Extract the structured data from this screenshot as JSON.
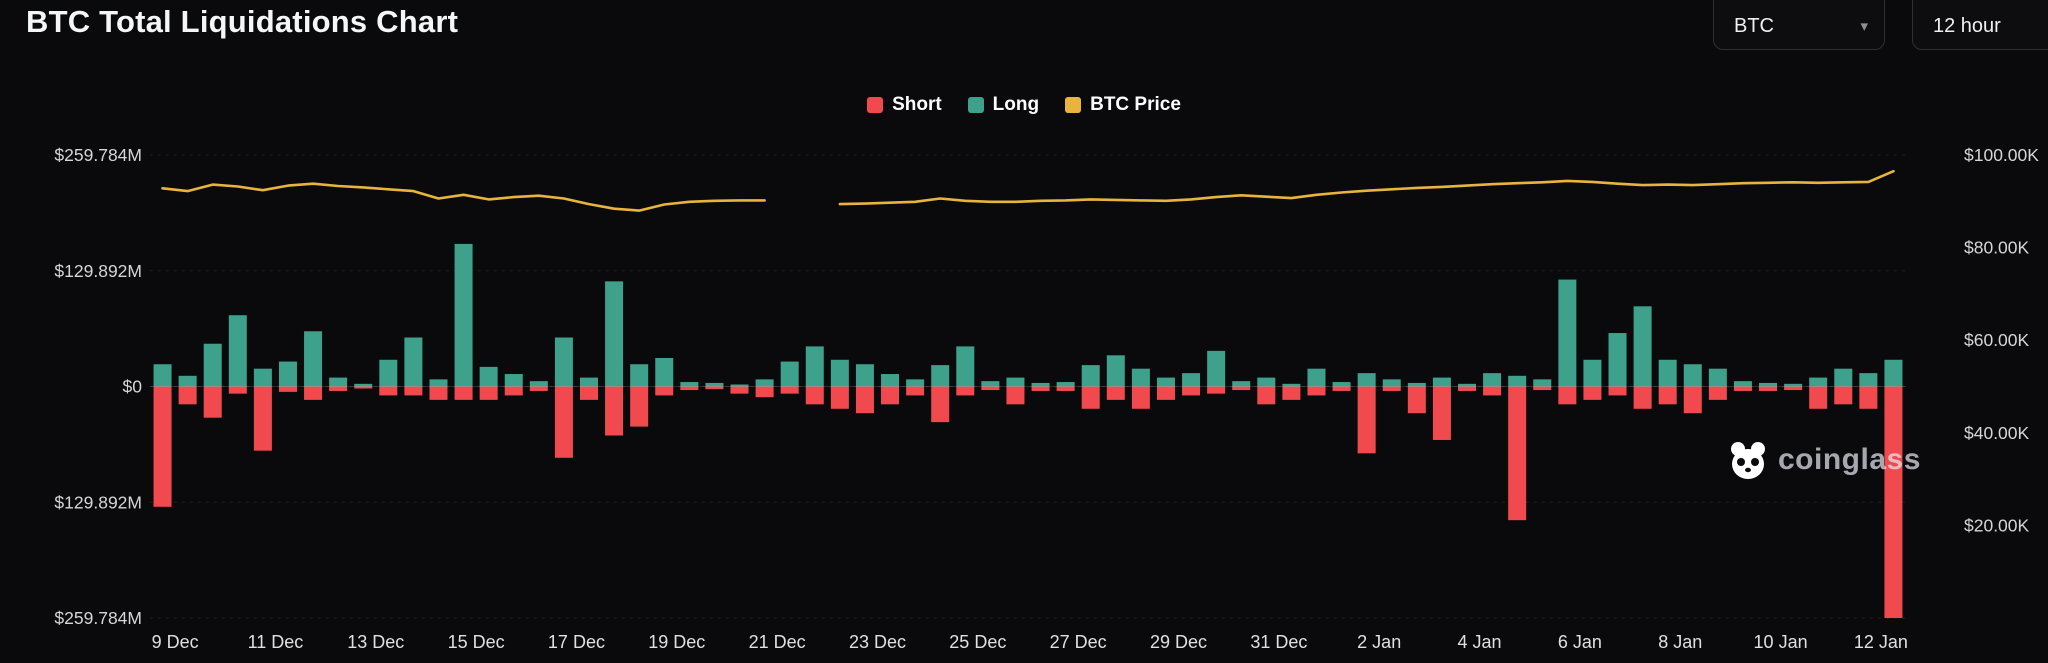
{
  "header": {
    "title": "BTC Total Liquidations Chart",
    "coin_select": "BTC",
    "interval_select": "12 hour"
  },
  "legend": [
    {
      "label": "Short",
      "color": "#f04a4f"
    },
    {
      "label": "Long",
      "color": "#3da18b"
    },
    {
      "label": "BTC Price",
      "color": "#e9b43e"
    }
  ],
  "watermark": "coinglass",
  "chart_data": {
    "type": "bar",
    "title": "BTC Total Liquidations Chart",
    "interval": "12 hour",
    "grid": true,
    "legend_position": "top-center",
    "left_axis": {
      "labels": [
        "$259.784M",
        "$129.892M",
        "$0",
        "$129.892M",
        "$259.784M"
      ],
      "values_M": [
        259.784,
        129.892,
        0,
        -129.892,
        -259.784
      ],
      "unit": "$M"
    },
    "right_axis": {
      "labels": [
        "$100.00K",
        "$80.00K",
        "$60.00K",
        "$40.00K",
        "$20.00K"
      ],
      "values_K": [
        100,
        80,
        60,
        40,
        20
      ],
      "range_K": [
        0,
        100
      ],
      "unit": "$K"
    },
    "x_tick_labels": [
      "9 Dec",
      "11 Dec",
      "13 Dec",
      "15 Dec",
      "17 Dec",
      "19 Dec",
      "21 Dec",
      "23 Dec",
      "25 Dec",
      "27 Dec",
      "29 Dec",
      "31 Dec",
      "2 Jan",
      "4 Jan",
      "6 Jan",
      "8 Jan",
      "10 Jan",
      "12 Jan"
    ],
    "categories": [
      "9 Dec",
      "9 Dec",
      "10 Dec",
      "10 Dec",
      "11 Dec",
      "11 Dec",
      "12 Dec",
      "12 Dec",
      "13 Dec",
      "13 Dec",
      "14 Dec",
      "14 Dec",
      "15 Dec",
      "15 Dec",
      "16 Dec",
      "16 Dec",
      "17 Dec",
      "17 Dec",
      "18 Dec",
      "18 Dec",
      "19 Dec",
      "19 Dec",
      "20 Dec",
      "20 Dec",
      "21 Dec",
      "21 Dec",
      "22 Dec",
      "22 Dec",
      "23 Dec",
      "23 Dec",
      "24 Dec",
      "24 Dec",
      "25 Dec",
      "25 Dec",
      "26 Dec",
      "26 Dec",
      "27 Dec",
      "27 Dec",
      "28 Dec",
      "28 Dec",
      "29 Dec",
      "29 Dec",
      "30 Dec",
      "30 Dec",
      "31 Dec",
      "31 Dec",
      "1 Jan",
      "1 Jan",
      "2 Jan",
      "2 Jan",
      "3 Jan",
      "3 Jan",
      "4 Jan",
      "4 Jan",
      "5 Jan",
      "5 Jan",
      "6 Jan",
      "6 Jan",
      "7 Jan",
      "7 Jan",
      "8 Jan",
      "8 Jan",
      "9 Jan",
      "9 Jan",
      "10 Jan",
      "10 Jan",
      "11 Jan",
      "11 Jan",
      "12 Jan",
      "12 Jan"
    ],
    "series": [
      {
        "name": "Long",
        "type": "bar",
        "axis": "left",
        "unit": "$M",
        "color": "#3da18b",
        "values": [
          25,
          12,
          48,
          80,
          20,
          28,
          62,
          10,
          3,
          30,
          55,
          8,
          160,
          22,
          14,
          6,
          55,
          10,
          118,
          25,
          32,
          5,
          4,
          2,
          8,
          28,
          45,
          30,
          25,
          14,
          8,
          24,
          45,
          6,
          10,
          4,
          5,
          24,
          35,
          20,
          10,
          15,
          40,
          6,
          10,
          3,
          20,
          5,
          15,
          8,
          4,
          10,
          3,
          15,
          12,
          8,
          120,
          30,
          60,
          90,
          30,
          25,
          20,
          6,
          4,
          3,
          10,
          20,
          15,
          30
        ]
      },
      {
        "name": "Short",
        "type": "bar",
        "axis": "left",
        "unit": "$M",
        "color": "#f04a4f",
        "values": [
          -135,
          -20,
          -35,
          -8,
          -72,
          -6,
          -15,
          -5,
          -2,
          -10,
          -10,
          -15,
          -15,
          -15,
          -10,
          -5,
          -80,
          -15,
          -55,
          -45,
          -10,
          -4,
          -3,
          -8,
          -12,
          -8,
          -20,
          -25,
          -30,
          -20,
          -10,
          -40,
          -10,
          -4,
          -20,
          -5,
          -5,
          -25,
          -15,
          -25,
          -15,
          -10,
          -8,
          -4,
          -20,
          -15,
          -10,
          -5,
          -75,
          -5,
          -30,
          -60,
          -5,
          -10,
          -150,
          -4,
          -20,
          -15,
          -10,
          -25,
          -20,
          -30,
          -15,
          -5,
          -5,
          -4,
          -25,
          -20,
          -25,
          -262
        ]
      },
      {
        "name": "BTC Price",
        "type": "line",
        "axis": "right",
        "unit": "$K",
        "color": "#e9b43e",
        "values": [
          92.8,
          92.2,
          93.6,
          93.2,
          92.4,
          93.4,
          93.8,
          93.3,
          93.0,
          92.6,
          92.2,
          90.6,
          91.4,
          90.4,
          90.9,
          91.2,
          90.6,
          89.4,
          88.4,
          88.0,
          89.3,
          89.9,
          90.1,
          90.2,
          90.2,
          null,
          null,
          89.4,
          89.5,
          89.7,
          89.9,
          90.6,
          90.1,
          89.9,
          89.9,
          90.1,
          90.2,
          90.4,
          90.3,
          90.2,
          90.1,
          90.4,
          90.9,
          91.3,
          91.0,
          90.7,
          91.4,
          91.9,
          92.3,
          92.6,
          92.9,
          93.1,
          93.4,
          93.7,
          93.9,
          94.1,
          94.4,
          94.2,
          93.8,
          93.5,
          93.6,
          93.5,
          93.7,
          93.9,
          94.0,
          94.1,
          94.0,
          94.1,
          94.2,
          96.5
        ]
      }
    ]
  }
}
